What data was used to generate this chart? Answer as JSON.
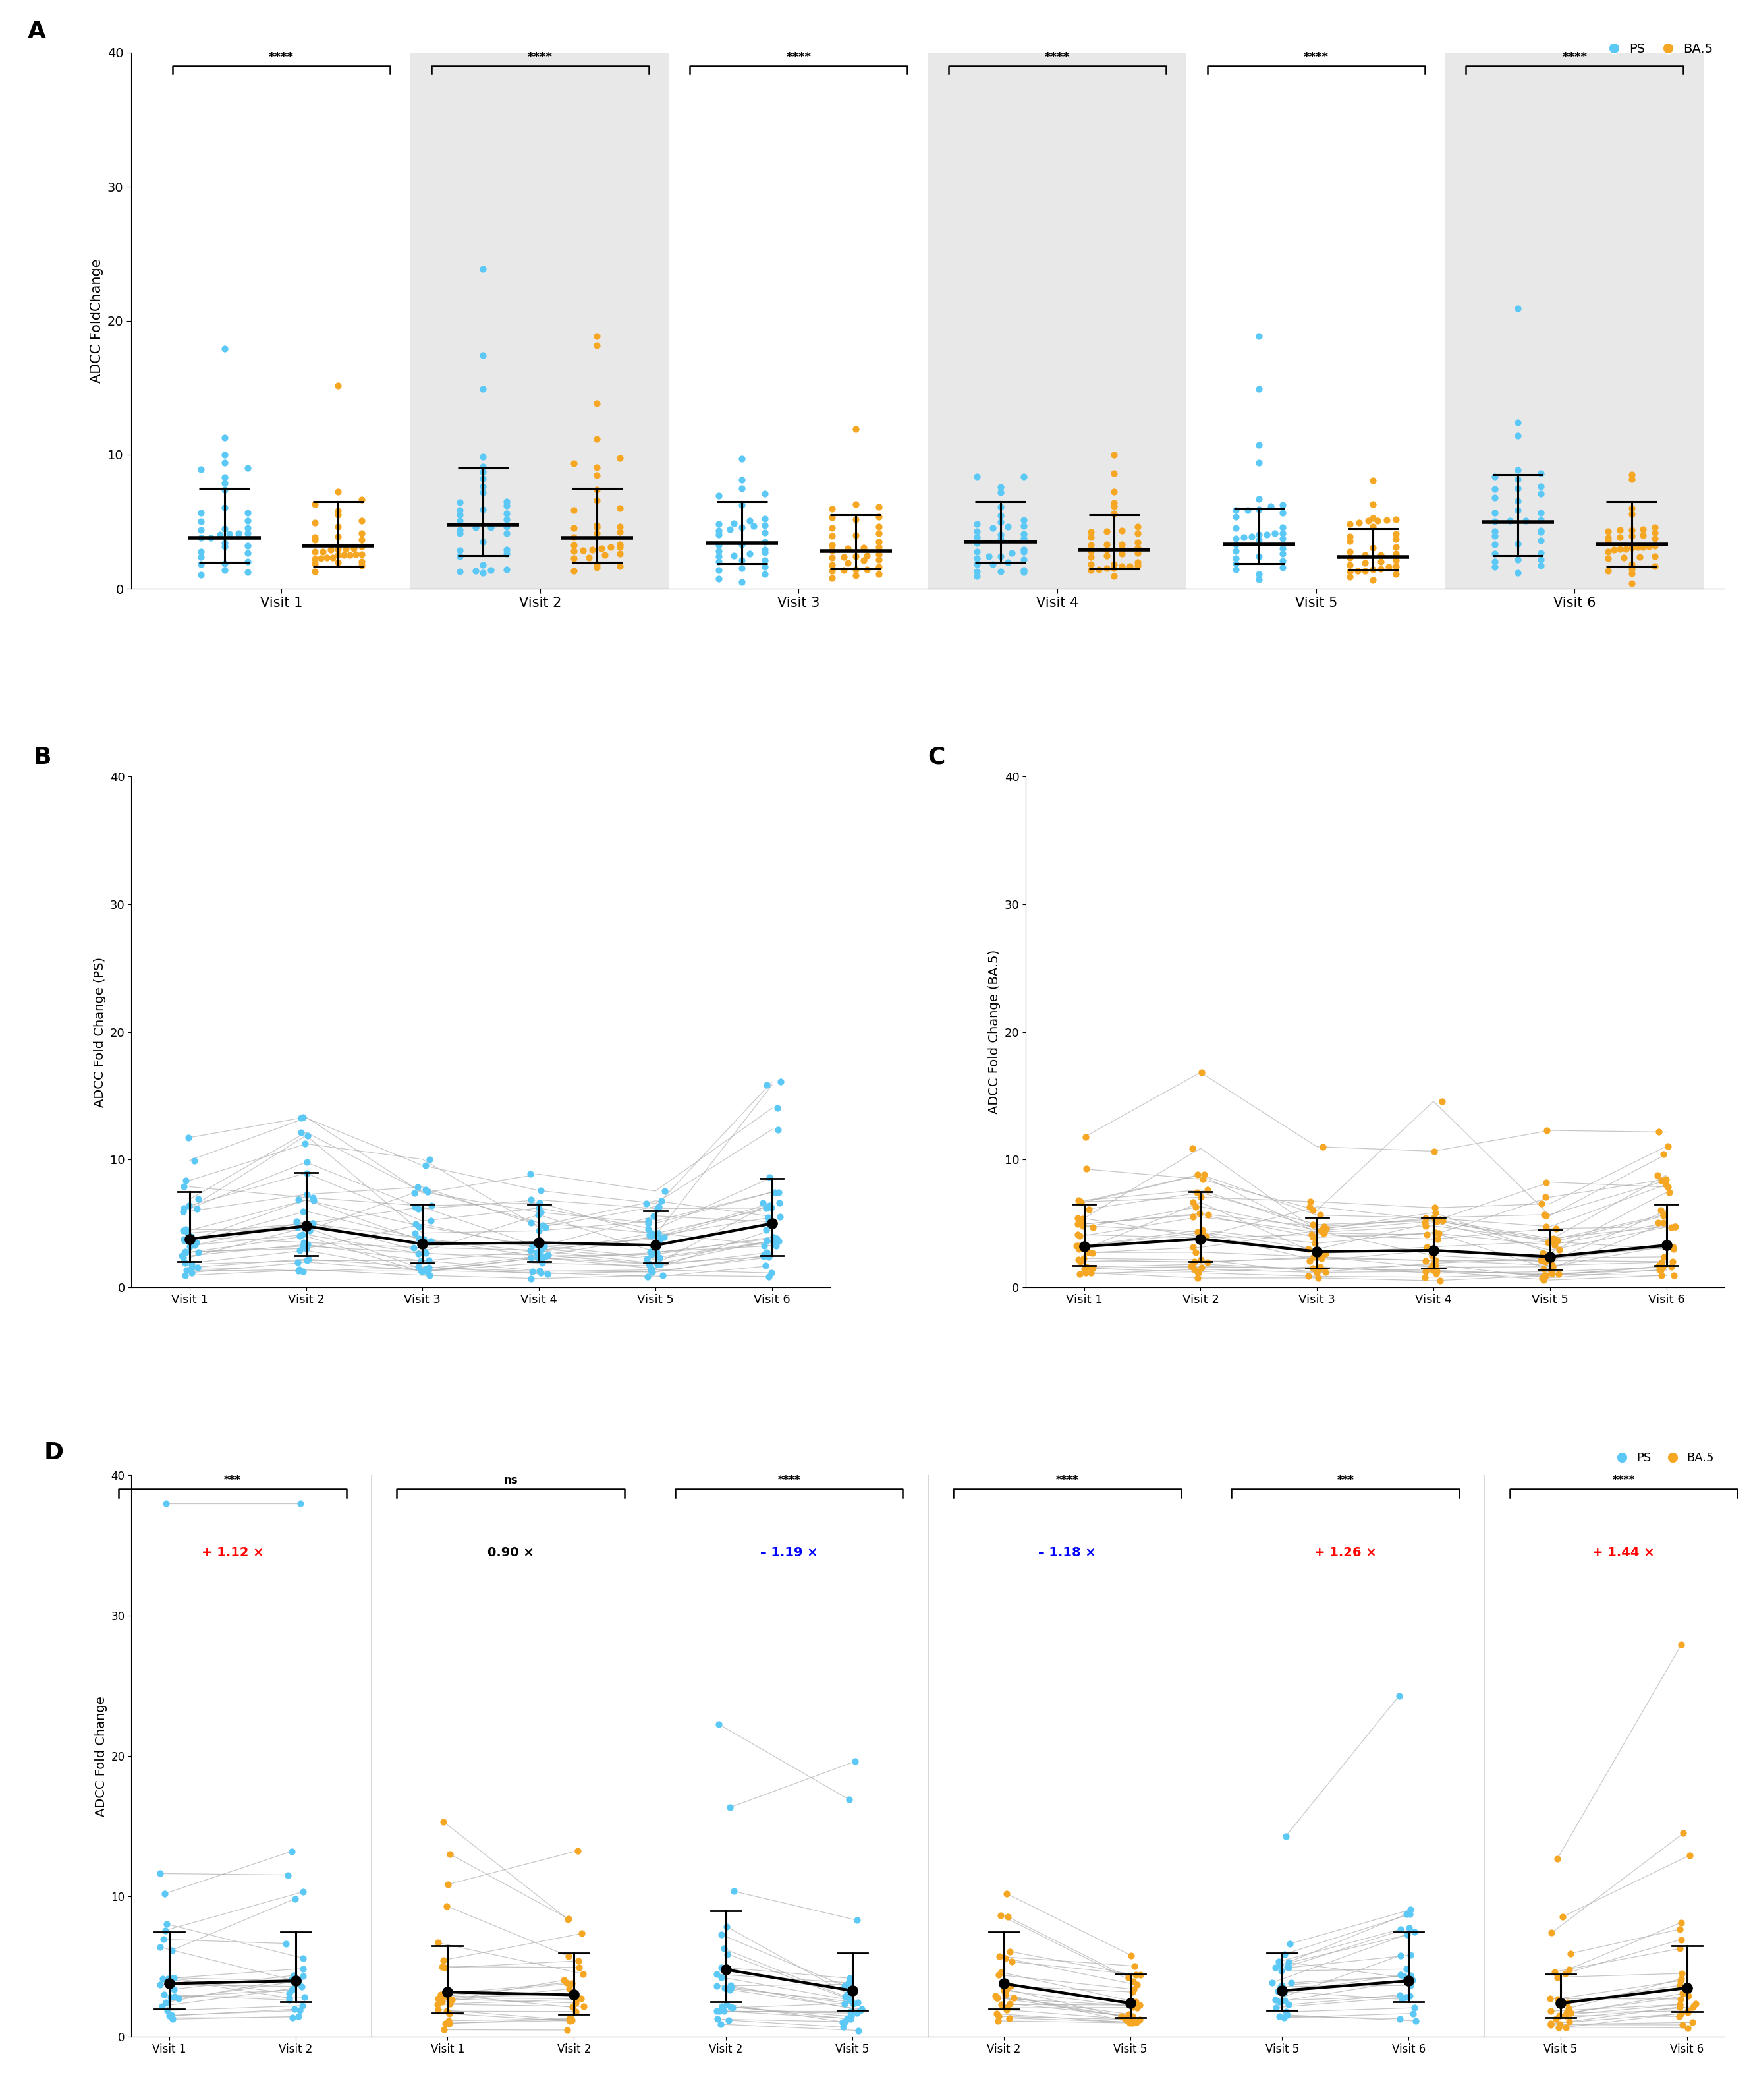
{
  "ps_color": "#5BC8F5",
  "ba5_color": "#F5A623",
  "gray_line": "#AAAAAA",
  "bg_shaded": "#E8E8E8",
  "visits": [
    "Visit 1",
    "Visit 2",
    "Visit 3",
    "Visit 4",
    "Visit 5",
    "Visit 6"
  ],
  "ylabel_A": "ADCC FoldChange",
  "ylabel_B": "ADCC Fold Change (PS)",
  "ylabel_C": "ADCC Fold Change (BA.5)",
  "ylabel_D": "ADCC Fold Change",
  "panel_A_ps_median": [
    3.8,
    4.8,
    3.4,
    3.5,
    3.3,
    5.0
  ],
  "panel_A_ps_q1": [
    2.0,
    2.5,
    1.9,
    2.0,
    1.9,
    2.5
  ],
  "panel_A_ps_q3": [
    7.5,
    9.0,
    6.5,
    6.5,
    6.0,
    8.5
  ],
  "panel_A_ba5_median": [
    3.2,
    3.8,
    2.8,
    2.9,
    2.4,
    3.3
  ],
  "panel_A_ba5_q1": [
    1.7,
    2.0,
    1.5,
    1.5,
    1.4,
    1.7
  ],
  "panel_A_ba5_q3": [
    6.5,
    7.5,
    5.5,
    5.5,
    4.5,
    6.5
  ],
  "panel_B_ps_median": [
    3.8,
    4.8,
    3.4,
    3.5,
    3.3,
    5.0
  ],
  "panel_B_ps_q1": [
    2.0,
    2.5,
    1.9,
    2.0,
    1.9,
    2.5
  ],
  "panel_B_ps_q3": [
    7.5,
    9.0,
    6.5,
    6.5,
    6.0,
    8.5
  ],
  "panel_C_ba5_median": [
    3.2,
    3.8,
    2.8,
    2.9,
    2.4,
    3.3
  ],
  "panel_C_ba5_q1": [
    1.7,
    2.0,
    1.5,
    1.5,
    1.4,
    1.7
  ],
  "panel_C_ba5_q3": [
    6.5,
    7.5,
    5.5,
    5.5,
    4.5,
    6.5
  ],
  "shaded_visits_A": [
    1,
    3,
    5
  ],
  "panel_D_groups": [
    {
      "x_labels": [
        "Visit 1",
        "Visit 2"
      ],
      "color": "ps",
      "sig": "***",
      "fold": "+ 1.12 ×",
      "fold_color": "red",
      "med1": 3.8,
      "med2": 4.0,
      "q1_1": 2.0,
      "q3_1": 7.5,
      "q1_2": 2.5,
      "q3_2": 7.5
    },
    {
      "x_labels": [
        "Visit 1",
        "Visit 2"
      ],
      "color": "ba5",
      "sig": "ns",
      "fold": "0.90 ×",
      "fold_color": "black",
      "med1": 3.2,
      "med2": 3.0,
      "q1_1": 1.7,
      "q3_1": 6.5,
      "q1_2": 1.6,
      "q3_2": 6.0
    },
    {
      "x_labels": [
        "Visit 2",
        "Visit 5"
      ],
      "color": "ps",
      "sig": "****",
      "fold": "– 1.19 ×",
      "fold_color": "blue",
      "med1": 4.8,
      "med2": 3.3,
      "q1_1": 2.5,
      "q3_1": 9.0,
      "q1_2": 1.9,
      "q3_2": 6.0
    },
    {
      "x_labels": [
        "Visit 2",
        "Visit 5"
      ],
      "color": "ba5",
      "sig": "****",
      "fold": "– 1.18 ×",
      "fold_color": "blue",
      "med1": 3.8,
      "med2": 2.4,
      "q1_1": 2.0,
      "q3_1": 7.5,
      "q1_2": 1.4,
      "q3_2": 4.5
    },
    {
      "x_labels": [
        "Visit 5",
        "Visit 6"
      ],
      "color": "ps",
      "sig": "***",
      "fold": "+ 1.26 ×",
      "fold_color": "red",
      "med1": 3.3,
      "med2": 4.0,
      "q1_1": 1.9,
      "q3_1": 6.0,
      "q1_2": 2.5,
      "q3_2": 7.5
    },
    {
      "x_labels": [
        "Visit 5",
        "Visit 6"
      ],
      "color": "ba5",
      "sig": "****",
      "fold": "+ 1.44 ×",
      "fold_color": "red",
      "med1": 2.4,
      "med2": 3.5,
      "q1_1": 1.4,
      "q3_1": 4.5,
      "q1_2": 1.8,
      "q3_2": 6.5
    }
  ],
  "n_subjects_A": 35,
  "n_subjects_BC": 30,
  "n_subjects_D": 25
}
